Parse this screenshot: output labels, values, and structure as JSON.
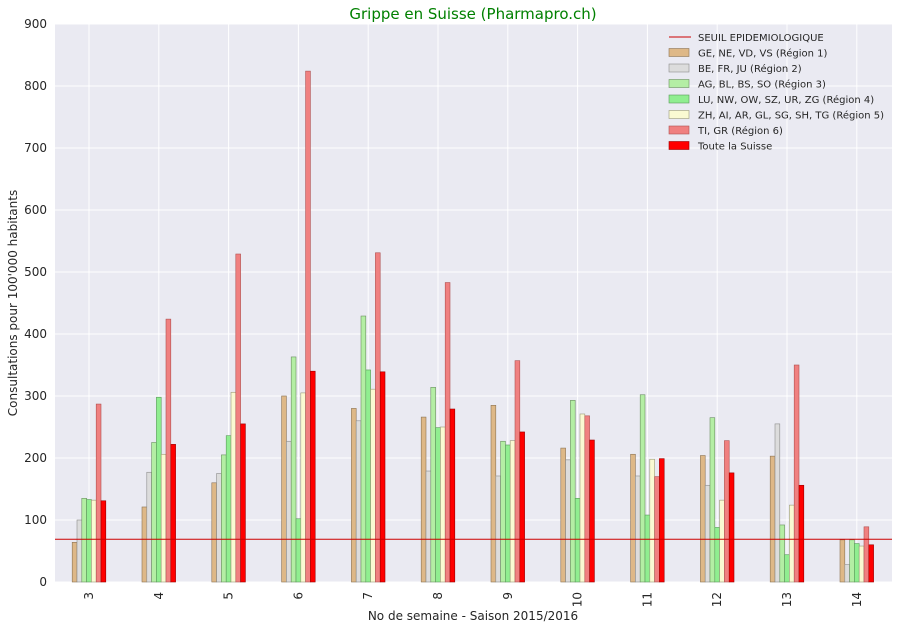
{
  "chart_data": {
    "type": "bar",
    "title": "Grippe en Suisse (Pharmapro.ch)",
    "xlabel": "No de semaine - Saison 2015/2016",
    "ylabel": "Consultations pour 100'000 habitants",
    "ylim": [
      0,
      900
    ],
    "yticks": [
      "0",
      "100",
      "200",
      "300",
      "400",
      "500",
      "600",
      "700",
      "800",
      "900"
    ],
    "grid": true,
    "legend_position": "top-right",
    "categories": [
      "3",
      "4",
      "5",
      "6",
      "7",
      "8",
      "9",
      "10",
      "11",
      "12",
      "13",
      "14"
    ],
    "threshold": {
      "name": "SEUIL EPIDEMIOLOGIQUE",
      "value": 69,
      "color": "#cc0000"
    },
    "series": [
      {
        "name": "GE, NE, VD, VS (Région 1)",
        "color": "#deb887",
        "edge": "#8b7355",
        "values": [
          64,
          121,
          160,
          300,
          280,
          266,
          285,
          216,
          206,
          204,
          203,
          68
        ]
      },
      {
        "name": "BE, FR, JU (Région 2)",
        "color": "#dcdcdc",
        "edge": "#8c8c8c",
        "values": [
          100,
          177,
          175,
          227,
          260,
          179,
          171,
          197,
          171,
          156,
          255,
          28
        ]
      },
      {
        "name": "AG, BL, BS, SO (Région 3)",
        "color": "#b4eea4",
        "edge": "#6a8f60",
        "values": [
          135,
          225,
          205,
          363,
          429,
          314,
          227,
          293,
          302,
          265,
          92,
          68
        ]
      },
      {
        "name": "LU, NW, OW, SZ, UR, ZG (Région 4)",
        "color": "#90ee90",
        "edge": "#5a9a5a",
        "values": [
          133,
          298,
          236,
          102,
          342,
          249,
          221,
          135,
          108,
          88,
          44,
          62
        ]
      },
      {
        "name": "ZH, AI, AR, GL, SG, SH, TG (Région 5)",
        "color": "#fafad2",
        "edge": "#9a9a7a",
        "values": [
          132,
          206,
          306,
          305,
          311,
          250,
          228,
          271,
          198,
          132,
          124,
          58
        ]
      },
      {
        "name": "TI, GR (Région 6)",
        "color": "#f08080",
        "edge": "#b05050",
        "values": [
          287,
          424,
          529,
          824,
          531,
          483,
          357,
          268,
          170,
          228,
          350,
          89
        ]
      },
      {
        "name": "Toute la Suisse",
        "color": "#ff0000",
        "edge": "#990000",
        "values": [
          131,
          222,
          255,
          340,
          339,
          279,
          242,
          229,
          199,
          176,
          156,
          60
        ]
      }
    ]
  }
}
